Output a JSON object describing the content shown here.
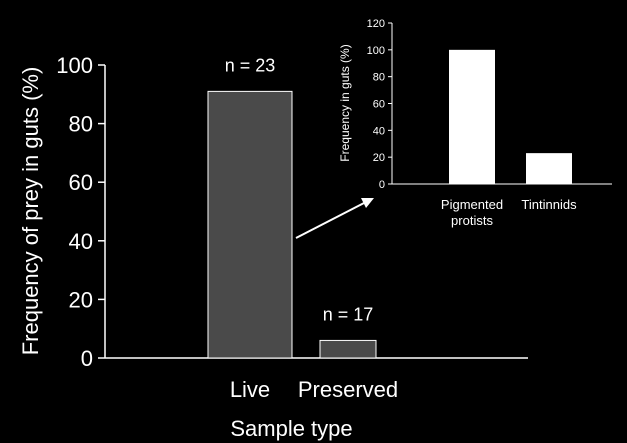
{
  "chart_data": [
    {
      "type": "bar",
      "categories": [
        "Live",
        "Preserved"
      ],
      "values": [
        91,
        6
      ],
      "annotations": [
        "n = 23",
        "n = 17"
      ],
      "xlabel": "Sample type",
      "ylabel": "Frequency of prey in guts (%)",
      "yticks": [
        "0",
        "20",
        "40",
        "60",
        "80",
        "100"
      ],
      "ylim": [
        0,
        100
      ],
      "grid": false,
      "bar_color": "#4a4a4a",
      "bar_edge_color": "#ffffff",
      "axis_color": "#ffffff"
    },
    {
      "type": "bar",
      "categories": [
        "Pigmented\nprotists",
        "Tintinnids"
      ],
      "values": [
        100,
        23
      ],
      "ylabel": "Frequency in guts (%)",
      "yticks": [
        "0",
        "20",
        "40",
        "60",
        "80",
        "100",
        "120"
      ],
      "ylim": [
        0,
        120
      ],
      "grid": false,
      "bar_color": "#ffffff",
      "axis_color": "#ffffff"
    }
  ],
  "colors": {
    "background": "#000000",
    "text": "#ffffff",
    "arrow": "#ffffff"
  }
}
